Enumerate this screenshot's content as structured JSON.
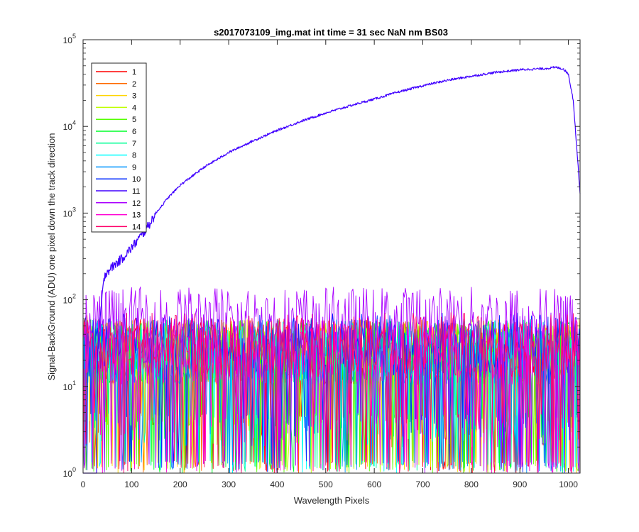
{
  "chart_data": {
    "type": "line",
    "title": "s2017073109_img.mat int time = 31 sec  NaN nm BS03",
    "xlabel": "Wavelength Pixels",
    "ylabel": "Signal-BackGround (ADU) one pixel down the track direction",
    "xlim": [
      0,
      1024
    ],
    "ylim": [
      1,
      100000
    ],
    "yscale": "log",
    "x_ticks": [
      0,
      100,
      200,
      300,
      400,
      500,
      600,
      700,
      800,
      900,
      1000
    ],
    "x_tick_labels": [
      "0",
      "100",
      "200",
      "300",
      "400",
      "500",
      "600",
      "700",
      "800",
      "900",
      "1000"
    ],
    "y_ticks": [
      1,
      10,
      100,
      1000,
      10000,
      100000
    ],
    "y_tick_labels": [
      {
        "base": "10",
        "exp": "0"
      },
      {
        "base": "10",
        "exp": "1"
      },
      {
        "base": "10",
        "exp": "2"
      },
      {
        "base": "10",
        "exp": "3"
      },
      {
        "base": "10",
        "exp": "4"
      },
      {
        "base": "10",
        "exp": "5"
      }
    ],
    "legend_position": "top-left",
    "grid": false,
    "series": [
      {
        "name": "1",
        "color": "#ff0000",
        "profile": "noise",
        "typical": 25
      },
      {
        "name": "2",
        "color": "#ff6a00",
        "profile": "noise",
        "typical": 25
      },
      {
        "name": "3",
        "color": "#ffd500",
        "profile": "noise",
        "typical": 25
      },
      {
        "name": "4",
        "color": "#bfff00",
        "profile": "noise",
        "typical": 25
      },
      {
        "name": "5",
        "color": "#55ff00",
        "profile": "noise",
        "typical": 25
      },
      {
        "name": "6",
        "color": "#00ff2a",
        "profile": "noise",
        "typical": 25
      },
      {
        "name": "7",
        "color": "#00ff95",
        "profile": "noise",
        "typical": 25
      },
      {
        "name": "8",
        "color": "#00ffff",
        "profile": "noise",
        "typical": 25
      },
      {
        "name": "9",
        "color": "#0095ff",
        "profile": "noise",
        "typical": 25
      },
      {
        "name": "10",
        "color": "#002aff",
        "profile": "noise",
        "typical": 30
      },
      {
        "name": "11",
        "color": "#4000ff",
        "profile": "signal",
        "points": [
          [
            0,
            1
          ],
          [
            28,
            1
          ],
          [
            30,
            25
          ],
          [
            35,
            60
          ],
          [
            40,
            120
          ],
          [
            45,
            200
          ],
          [
            60,
            240
          ],
          [
            80,
            300
          ],
          [
            100,
            400
          ],
          [
            130,
            650
          ],
          [
            150,
            1000
          ],
          [
            175,
            1500
          ],
          [
            200,
            2100
          ],
          [
            250,
            3400
          ],
          [
            300,
            5000
          ],
          [
            350,
            6800
          ],
          [
            400,
            9000
          ],
          [
            450,
            11500
          ],
          [
            500,
            14300
          ],
          [
            550,
            17300
          ],
          [
            600,
            20700
          ],
          [
            650,
            25000
          ],
          [
            700,
            29500
          ],
          [
            750,
            34000
          ],
          [
            800,
            38000
          ],
          [
            850,
            42000
          ],
          [
            900,
            45000
          ],
          [
            950,
            46500
          ],
          [
            975,
            48000
          ],
          [
            990,
            46000
          ],
          [
            1000,
            40000
          ],
          [
            1010,
            20000
          ],
          [
            1024,
            1700
          ]
        ]
      },
      {
        "name": "12",
        "color": "#aa00ff",
        "profile": "noise",
        "typical": 60
      },
      {
        "name": "13",
        "color": "#ff00d4",
        "profile": "noise",
        "typical": 25
      },
      {
        "name": "14",
        "color": "#ff006a",
        "profile": "noise",
        "typical": 30
      }
    ]
  }
}
